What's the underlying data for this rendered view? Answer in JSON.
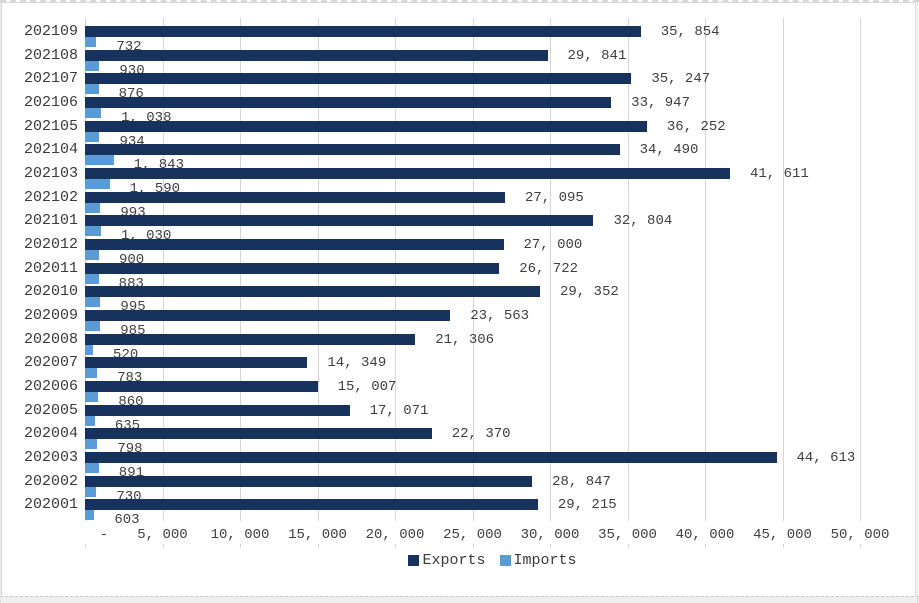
{
  "chart_data": {
    "type": "bar",
    "orientation": "horizontal",
    "grid": true,
    "legend_position": "bottom",
    "xlim": [
      0,
      50000
    ],
    "x_ticks": [
      "-",
      "5, 000",
      "10, 000",
      "15, 000",
      "20, 000",
      "25, 000",
      "30, 000",
      "35, 000",
      "40, 000",
      "45, 000",
      "50, 000"
    ],
    "x_tick_values": [
      0,
      5000,
      10000,
      15000,
      20000,
      25000,
      30000,
      35000,
      40000,
      45000,
      50000
    ],
    "categories": [
      "202109",
      "202108",
      "202107",
      "202106",
      "202105",
      "202104",
      "202103",
      "202102",
      "202101",
      "202012",
      "202011",
      "202010",
      "202009",
      "202008",
      "202007",
      "202006",
      "202005",
      "202004",
      "202003",
      "202002",
      "202001"
    ],
    "series": [
      {
        "name": "Exports",
        "color": "#17335d",
        "values": [
          35854,
          29841,
          35247,
          33947,
          36252,
          34490,
          41611,
          27095,
          32804,
          27000,
          26722,
          29352,
          23563,
          21306,
          14349,
          15007,
          17071,
          22370,
          44613,
          28847,
          29215
        ],
        "labels": [
          "35, 854",
          "29, 841",
          "35, 247",
          "33, 947",
          "36, 252",
          "34, 490",
          "41, 611",
          "27, 095",
          "32, 804",
          "27, 000",
          "26, 722",
          "29, 352",
          "23, 563",
          "21, 306",
          "14, 349",
          "15, 007",
          "17, 071",
          "22, 370",
          "44, 613",
          "28, 847",
          "29, 215"
        ]
      },
      {
        "name": "Imports",
        "color": "#5b9bd5",
        "values": [
          732,
          930,
          876,
          1038,
          934,
          1843,
          1590,
          993,
          1030,
          900,
          883,
          995,
          985,
          520,
          783,
          860,
          635,
          798,
          891,
          730,
          603
        ],
        "labels": [
          "732",
          "930",
          "876",
          "1, 038",
          "934",
          "1, 843",
          "1, 590",
          "993",
          "1, 030",
          "900",
          "883",
          "995",
          "985",
          "520",
          "783",
          "860",
          "635",
          "798",
          "891",
          "730",
          "603"
        ]
      }
    ],
    "style": {
      "gridline_color": "#d6d6d6",
      "label_text_color": "#404040"
    }
  }
}
